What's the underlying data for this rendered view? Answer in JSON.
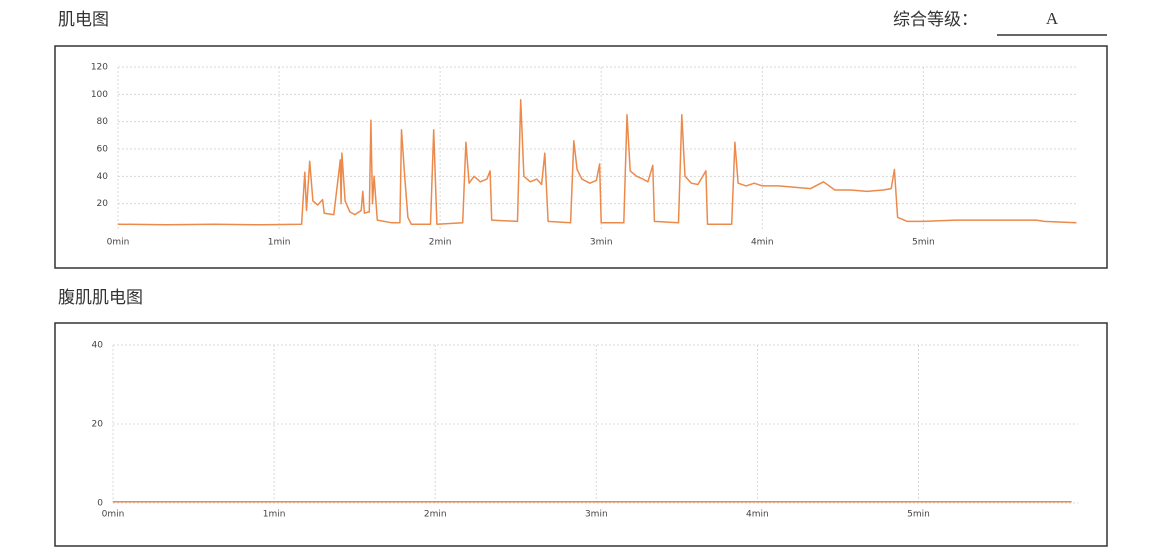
{
  "grade": {
    "label": "综合等级：",
    "value": "A"
  },
  "chart_data": [
    {
      "type": "line",
      "title": "肌电图",
      "color": "#ec8a4c",
      "grid": true,
      "xlim": [
        0,
        5.96
      ],
      "ylim": [
        0,
        120
      ],
      "xticks": [
        {
          "value": 0,
          "label": "0min"
        },
        {
          "value": 1,
          "label": "1min"
        },
        {
          "value": 2,
          "label": "2min"
        },
        {
          "value": 3,
          "label": "3min"
        },
        {
          "value": 4,
          "label": "4min"
        },
        {
          "value": 5,
          "label": "5min"
        }
      ],
      "yticks": [
        20,
        40,
        60,
        80,
        100,
        120
      ],
      "x": [
        0,
        0.3,
        0.6,
        0.9,
        1.14,
        1.16,
        1.17,
        1.19,
        1.21,
        1.24,
        1.27,
        1.28,
        1.34,
        1.38,
        1.385,
        1.39,
        1.41,
        1.44,
        1.47,
        1.51,
        1.52,
        1.53,
        1.56,
        1.57,
        1.58,
        1.59,
        1.61,
        1.7,
        1.75,
        1.76,
        1.78,
        1.8,
        1.82,
        1.94,
        1.96,
        1.98,
        2.14,
        2.16,
        2.18,
        2.21,
        2.25,
        2.29,
        2.31,
        2.32,
        2.48,
        2.5,
        2.52,
        2.56,
        2.6,
        2.63,
        2.65,
        2.67,
        2.81,
        2.83,
        2.85,
        2.88,
        2.93,
        2.97,
        2.99,
        3.0,
        3.14,
        3.16,
        3.18,
        3.22,
        3.26,
        3.29,
        3.32,
        3.33,
        3.48,
        3.5,
        3.52,
        3.56,
        3.6,
        3.65,
        3.66,
        3.81,
        3.83,
        3.85,
        3.9,
        3.95,
        4.0,
        4.1,
        4.2,
        4.3,
        4.38,
        4.45,
        4.55,
        4.65,
        4.75,
        4.8,
        4.82,
        4.84,
        4.9,
        5.0,
        5.2,
        5.5,
        5.7,
        5.75,
        5.95
      ],
      "values": [
        5,
        4.5,
        5,
        4.5,
        5,
        43,
        15,
        51,
        22,
        19,
        23,
        13,
        12,
        52,
        20,
        57,
        22,
        14,
        12,
        15,
        29,
        13,
        14,
        81,
        20,
        40,
        8,
        6,
        6,
        74,
        40,
        10,
        5,
        5,
        74,
        5,
        6,
        65,
        35,
        40,
        36,
        38,
        44,
        8,
        7,
        96,
        40,
        36,
        38,
        34,
        57,
        7,
        6,
        66,
        45,
        38,
        35,
        37,
        49,
        6,
        6,
        85,
        44,
        40,
        38,
        36,
        48,
        7,
        6,
        85,
        40,
        35,
        34,
        44,
        5,
        5,
        65,
        35,
        33,
        35,
        33,
        33,
        32,
        31,
        36,
        30,
        30,
        29,
        30,
        31,
        45,
        10,
        7,
        7,
        8,
        8,
        8,
        7,
        6
      ]
    },
    {
      "type": "line",
      "title": "腹肌肌电图",
      "color": "#ec8a4c",
      "grid": true,
      "xlim": [
        0,
        5.99
      ],
      "ylim": [
        0,
        40
      ],
      "xticks": [
        {
          "value": 0,
          "label": "0min"
        },
        {
          "value": 1,
          "label": "1min"
        },
        {
          "value": 2,
          "label": "2min"
        },
        {
          "value": 3,
          "label": "3min"
        },
        {
          "value": 4,
          "label": "4min"
        },
        {
          "value": 5,
          "label": "5min"
        }
      ],
      "yticks": [
        0,
        20,
        40
      ],
      "x": [
        0,
        1,
        2,
        3,
        4,
        5,
        5.95
      ],
      "values": [
        0.3,
        0.3,
        0.3,
        0.3,
        0.3,
        0.3,
        0.3
      ]
    }
  ]
}
